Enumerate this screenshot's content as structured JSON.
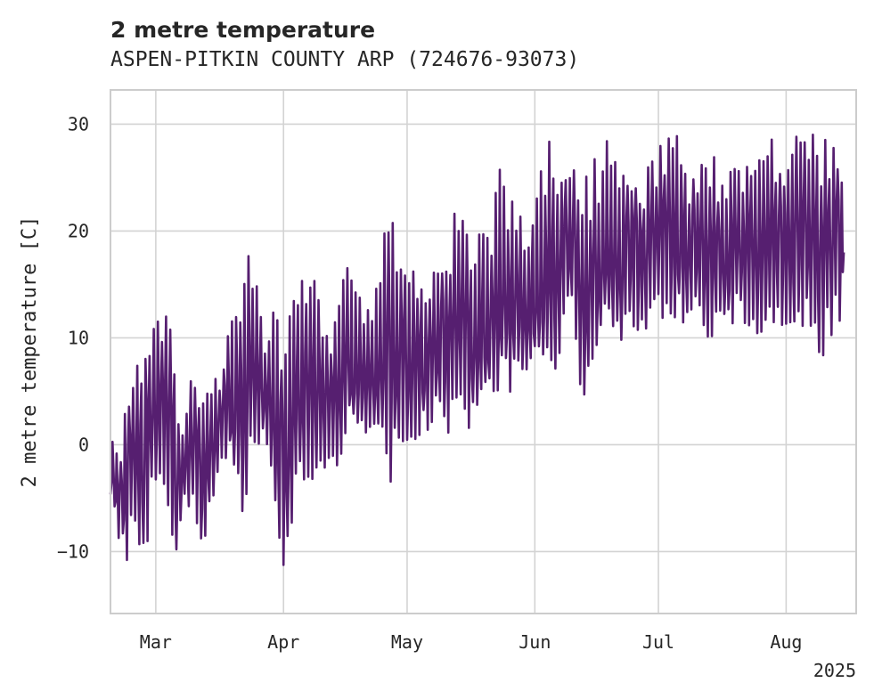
{
  "chart_data": {
    "type": "line",
    "title": "2 metre temperature",
    "subtitle": "ASPEN-PITKIN COUNTY ARP (724676-93073)",
    "xlabel": "",
    "ylabel": "2 metre temperature [C]",
    "xlim": [
      "2025-02-18",
      "2025-08-18"
    ],
    "ylim": [
      -15.8,
      33.2
    ],
    "x_ticks": [
      {
        "date": "2025-03-01",
        "label": "Mar"
      },
      {
        "date": "2025-04-01",
        "label": "Apr"
      },
      {
        "date": "2025-05-01",
        "label": "May"
      },
      {
        "date": "2025-06-01",
        "label": "Jun"
      },
      {
        "date": "2025-07-01",
        "label": "Jul"
      },
      {
        "date": "2025-08-01",
        "label": "Aug"
      }
    ],
    "x_offset_label": "2025",
    "y_ticks": [
      -10,
      0,
      10,
      20,
      30
    ],
    "grid": true,
    "series": [
      {
        "color": "#561f70",
        "x": [
          "2025-02-18",
          "2025-02-20",
          "2025-02-22",
          "2025-02-24",
          "2025-02-26",
          "2025-02-28",
          "2025-03-02",
          "2025-03-04",
          "2025-03-06",
          "2025-03-08",
          "2025-03-10",
          "2025-03-12",
          "2025-03-14",
          "2025-03-16",
          "2025-03-18",
          "2025-03-20",
          "2025-03-22",
          "2025-03-24",
          "2025-03-26",
          "2025-03-28",
          "2025-03-30",
          "2025-04-01",
          "2025-04-03",
          "2025-04-05",
          "2025-04-07",
          "2025-04-09",
          "2025-04-11",
          "2025-04-13",
          "2025-04-15",
          "2025-04-17",
          "2025-04-19",
          "2025-04-21",
          "2025-04-23",
          "2025-04-25",
          "2025-04-27",
          "2025-04-29",
          "2025-05-01",
          "2025-05-03",
          "2025-05-05",
          "2025-05-07",
          "2025-05-09",
          "2025-05-11",
          "2025-05-13",
          "2025-05-15",
          "2025-05-17",
          "2025-05-19",
          "2025-05-21",
          "2025-05-23",
          "2025-05-25",
          "2025-05-27",
          "2025-05-29",
          "2025-05-31",
          "2025-06-02",
          "2025-06-04",
          "2025-06-06",
          "2025-06-08",
          "2025-06-10",
          "2025-06-12",
          "2025-06-14",
          "2025-06-16",
          "2025-06-18",
          "2025-06-20",
          "2025-06-22",
          "2025-06-24",
          "2025-06-26",
          "2025-06-28",
          "2025-06-30",
          "2025-07-02",
          "2025-07-04",
          "2025-07-06",
          "2025-07-08",
          "2025-07-10",
          "2025-07-12",
          "2025-07-14",
          "2025-07-16",
          "2025-07-18",
          "2025-07-20",
          "2025-07-22",
          "2025-07-24",
          "2025-07-26",
          "2025-07-28",
          "2025-07-30",
          "2025-08-01",
          "2025-08-03",
          "2025-08-05",
          "2025-08-07",
          "2025-08-09",
          "2025-08-11",
          "2025-08-13",
          "2025-08-15"
        ],
        "min": [
          -5,
          -10.5,
          -13.2,
          -9,
          -12.3,
          -8,
          -5,
          -9.3,
          -13.2,
          -6.8,
          -8,
          -12.7,
          -6.5,
          -5,
          -3,
          -4,
          -13,
          -3,
          -1,
          -2,
          -7.8,
          -12.8,
          -8.5,
          -6,
          -5.5,
          -4,
          -3.5,
          -2,
          -5.5,
          0,
          -2,
          -1,
          -1.5,
          0,
          -6.6,
          -2.5,
          -2,
          -1,
          0,
          0,
          1,
          -1,
          -1,
          0,
          1,
          2,
          2,
          3,
          3,
          5,
          4,
          5,
          5,
          5,
          3,
          8,
          11,
          3,
          4,
          5,
          8,
          9,
          8,
          10,
          8,
          9,
          10,
          9,
          8,
          10,
          8,
          11,
          8,
          9,
          9,
          9,
          10,
          8,
          9,
          9,
          10,
          9,
          9,
          9,
          8,
          9,
          5,
          8,
          10,
          10
        ],
        "max": [
          1.5,
          0,
          5.5,
          8.7,
          9.5,
          12.8,
          11.5,
          16.5,
          5,
          3,
          7.8,
          5.6,
          5,
          7,
          10.5,
          13.8,
          16.5,
          18.2,
          14,
          10.5,
          15.5,
          9.8,
          14.5,
          20,
          16.5,
          15,
          11.5,
          10,
          16,
          17,
          16,
          14,
          14.5,
          19.5,
          21.7,
          21.3,
          18,
          17,
          15,
          16,
          19.5,
          19,
          23,
          23,
          17,
          22,
          19.5,
          26.5,
          24,
          23,
          21.5,
          21,
          25,
          28.5,
          28,
          28.5,
          28,
          23,
          26,
          27,
          29,
          27,
          25,
          28,
          27,
          26,
          28,
          31,
          29,
          29,
          27,
          27,
          26,
          28,
          26,
          26,
          28,
          28,
          26.5,
          29,
          29,
          29,
          28.5,
          29,
          30.5,
          30,
          29.5,
          29,
          30,
          26
        ]
      }
    ]
  }
}
